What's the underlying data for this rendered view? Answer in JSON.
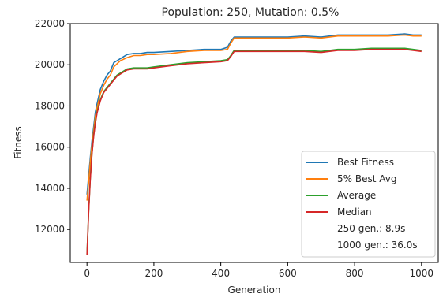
{
  "chart_data": {
    "type": "line",
    "title": "Population: 250, Mutation: 0.5%",
    "xlabel": "Generation",
    "ylabel": "Fitness",
    "xlim": [
      -50,
      1050
    ],
    "ylim": [
      10400,
      22000
    ],
    "xticks": [
      0,
      200,
      400,
      600,
      800,
      1000
    ],
    "yticks": [
      12000,
      14000,
      16000,
      18000,
      20000,
      22000
    ],
    "grid": false,
    "legend_placement": "lower-right",
    "legend_notes": [
      "250 gen.: 8.9s",
      "1000 gen.: 36.0s"
    ],
    "series": [
      {
        "name": "Best Fitness",
        "color": "#1f77b4",
        "x": [
          0,
          5,
          10,
          15,
          20,
          25,
          30,
          40,
          50,
          60,
          70,
          80,
          90,
          100,
          120,
          140,
          160,
          180,
          200,
          250,
          300,
          350,
          400,
          420,
          430,
          440,
          460,
          500,
          550,
          600,
          650,
          700,
          750,
          800,
          850,
          900,
          950,
          975,
          1000
        ],
        "y": [
          13700,
          14600,
          15500,
          16300,
          17000,
          17700,
          18100,
          18800,
          19200,
          19500,
          19700,
          20100,
          20200,
          20300,
          20500,
          20550,
          20550,
          20600,
          20600,
          20650,
          20700,
          20750,
          20750,
          20850,
          21150,
          21350,
          21350,
          21350,
          21350,
          21350,
          21400,
          21350,
          21450,
          21450,
          21450,
          21450,
          21500,
          21450,
          21450
        ]
      },
      {
        "name": "5% Best Avg",
        "color": "#ff7f0e",
        "x": [
          0,
          5,
          10,
          15,
          20,
          25,
          30,
          40,
          50,
          60,
          70,
          80,
          90,
          100,
          120,
          140,
          160,
          180,
          200,
          250,
          300,
          350,
          400,
          420,
          430,
          440,
          460,
          500,
          550,
          600,
          650,
          700,
          750,
          800,
          850,
          900,
          950,
          975,
          1000
        ],
        "y": [
          13400,
          14300,
          15300,
          16100,
          16800,
          17500,
          17900,
          18600,
          19000,
          19300,
          19500,
          19900,
          20050,
          20200,
          20350,
          20450,
          20450,
          20500,
          20500,
          20550,
          20650,
          20700,
          20700,
          20750,
          21050,
          21300,
          21300,
          21300,
          21300,
          21300,
          21350,
          21300,
          21400,
          21400,
          21400,
          21400,
          21450,
          21400,
          21400
        ]
      },
      {
        "name": "Average",
        "color": "#2ca02c",
        "x": [
          0,
          5,
          10,
          15,
          20,
          25,
          30,
          40,
          50,
          60,
          70,
          80,
          90,
          100,
          120,
          140,
          160,
          180,
          200,
          250,
          300,
          350,
          400,
          420,
          430,
          440,
          460,
          500,
          550,
          600,
          650,
          700,
          750,
          800,
          850,
          900,
          950,
          975,
          1000
        ],
        "y": [
          10800,
          12900,
          14500,
          15700,
          16600,
          17200,
          17700,
          18300,
          18700,
          18900,
          19100,
          19300,
          19500,
          19600,
          19800,
          19850,
          19850,
          19850,
          19900,
          20000,
          20100,
          20150,
          20200,
          20250,
          20450,
          20700,
          20700,
          20700,
          20700,
          20700,
          20700,
          20650,
          20750,
          20750,
          20800,
          20800,
          20800,
          20750,
          20700
        ]
      },
      {
        "name": "Median",
        "color": "#d62728",
        "x": [
          0,
          5,
          10,
          15,
          20,
          25,
          30,
          40,
          50,
          60,
          70,
          80,
          90,
          100,
          120,
          140,
          160,
          180,
          200,
          250,
          300,
          350,
          400,
          420,
          430,
          440,
          460,
          500,
          550,
          600,
          650,
          700,
          750,
          800,
          850,
          900,
          950,
          975,
          1000
        ],
        "y": [
          10750,
          12850,
          14450,
          15650,
          16550,
          17150,
          17650,
          18250,
          18650,
          18850,
          19050,
          19250,
          19450,
          19550,
          19750,
          19800,
          19800,
          19800,
          19850,
          19950,
          20050,
          20100,
          20150,
          20200,
          20400,
          20650,
          20650,
          20650,
          20650,
          20650,
          20650,
          20600,
          20700,
          20700,
          20750,
          20750,
          20750,
          20700,
          20650
        ]
      }
    ]
  }
}
